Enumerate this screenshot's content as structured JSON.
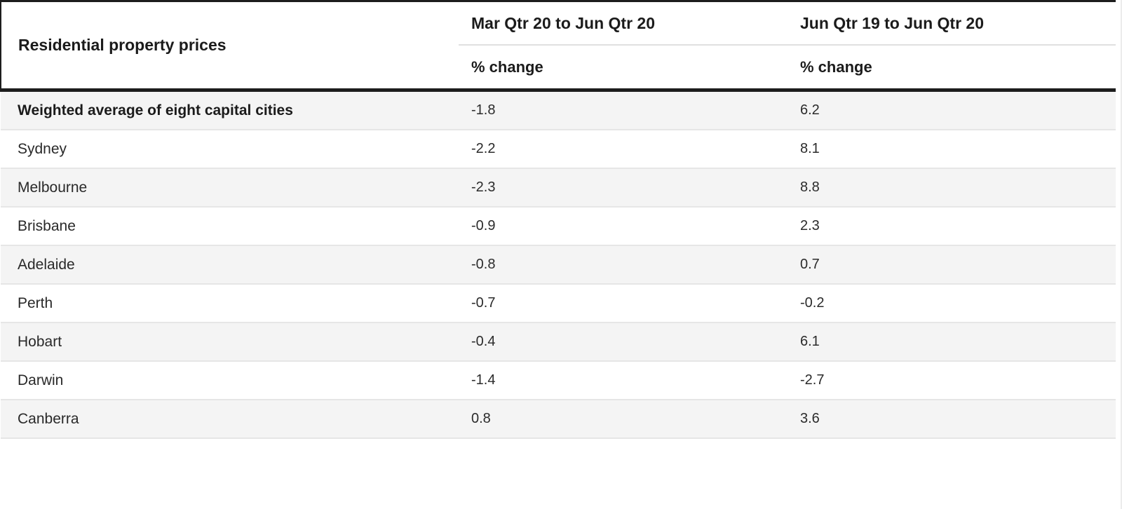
{
  "table": {
    "header": {
      "row_header_label": "Residential property prices",
      "columns": [
        {
          "title": "Mar Qtr 20 to Jun Qtr 20",
          "subtitle": "% change"
        },
        {
          "title": "Jun Qtr 19 to Jun Qtr 20",
          "subtitle": "% change"
        }
      ]
    },
    "rows": [
      {
        "label": "Weighted average of eight capital cities",
        "values": [
          "-1.8",
          "6.2"
        ]
      },
      {
        "label": "Sydney",
        "values": [
          "-2.2",
          "8.1"
        ]
      },
      {
        "label": "Melbourne",
        "values": [
          "-2.3",
          "8.8"
        ]
      },
      {
        "label": "Brisbane",
        "values": [
          "-0.9",
          "2.3"
        ]
      },
      {
        "label": "Adelaide",
        "values": [
          "-0.8",
          "0.7"
        ]
      },
      {
        "label": "Perth",
        "values": [
          "-0.7",
          "-0.2"
        ]
      },
      {
        "label": "Hobart",
        "values": [
          "-0.4",
          "6.1"
        ]
      },
      {
        "label": "Darwin",
        "values": [
          "-1.4",
          "-2.7"
        ]
      },
      {
        "label": "Canberra",
        "values": [
          "0.8",
          "3.6"
        ]
      }
    ]
  },
  "chart_data": {
    "type": "table",
    "title": "Residential property prices",
    "columns": [
      "Residential property prices",
      "Mar Qtr 20 to Jun Qtr 20 (% change)",
      "Jun Qtr 19 to Jun Qtr 20 (% change)"
    ],
    "rows": [
      [
        "Weighted average of eight capital cities",
        -1.8,
        6.2
      ],
      [
        "Sydney",
        -2.2,
        8.1
      ],
      [
        "Melbourne",
        -2.3,
        8.8
      ],
      [
        "Brisbane",
        -0.9,
        2.3
      ],
      [
        "Adelaide",
        -0.8,
        0.7
      ],
      [
        "Perth",
        -0.7,
        -0.2
      ],
      [
        "Hobart",
        -0.4,
        6.1
      ],
      [
        "Darwin",
        -1.4,
        -2.7
      ],
      [
        "Canberra",
        0.8,
        3.6
      ]
    ]
  },
  "colors": {
    "stripe": "#f4f4f4",
    "separator": "#e6e6e6",
    "heavy_rule": "#1d1d1d",
    "subheader_rule": "#e0e0e0",
    "header_text": "#1b1b1b"
  }
}
